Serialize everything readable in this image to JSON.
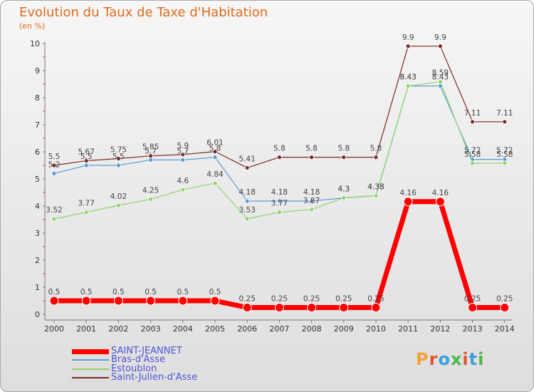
{
  "header": {
    "title": "Evolution du Taux de Taxe d'Habitation",
    "unit": "(en %)"
  },
  "logo": {
    "text": "Proxiti",
    "colors": [
      "#f2a33a",
      "#e5552d",
      "#3b9fd8",
      "#4bb648",
      "#e5552d",
      "#3b9fd8",
      "#4bb648"
    ]
  },
  "chart_data": {
    "type": "line",
    "title": "Evolution du Taux de Taxe d'Habitation",
    "ylabel": "(en %)",
    "x": [
      "2000",
      "2001",
      "2002",
      "2003",
      "2004",
      "2005",
      "2006",
      "2007",
      "2008",
      "2009",
      "2010",
      "2011",
      "2012",
      "2013",
      "2014"
    ],
    "ylim": [
      0,
      10
    ],
    "yticks": [
      "0",
      "1",
      "2",
      "3",
      "4",
      "5",
      "6",
      "7",
      "8",
      "9",
      "10"
    ],
    "grid": false,
    "legend_position": "bottom-left",
    "series": [
      {
        "name": "SAINT-JEANNET",
        "color": "#ff0000",
        "values": [
          0.5,
          0.5,
          0.5,
          0.5,
          0.5,
          0.5,
          0.25,
          0.25,
          0.25,
          0.25,
          0.25,
          4.16,
          4.16,
          0.25,
          0.25
        ],
        "labels": [
          "0.5",
          "0.5",
          "0.5",
          "0.5",
          "0.5",
          "0.5",
          "0.25",
          "0.25",
          "0.25",
          "0.25",
          "0.25",
          "4.16",
          "4.16",
          "0.25",
          "0.25"
        ]
      },
      {
        "name": "Bras-d'Asse",
        "color": "#5b9bd5",
        "values": [
          5.2,
          5.5,
          5.5,
          5.7,
          5.7,
          5.8,
          4.18,
          4.18,
          4.18,
          4.3,
          4.38,
          8.43,
          8.43,
          5.72,
          5.72
        ],
        "labels": [
          "5.2",
          "5.5",
          "5.5",
          "5.7",
          "5.7",
          "5.8",
          "4.18",
          "4.18",
          "4.18",
          "4.3",
          "4.38",
          "8.43",
          "8.43",
          "5.72",
          "5.72"
        ]
      },
      {
        "name": "Estoublon",
        "color": "#8ed36c",
        "values": [
          3.52,
          3.77,
          4.02,
          4.25,
          4.6,
          4.84,
          3.53,
          3.77,
          3.87,
          4.3,
          4.38,
          8.43,
          8.59,
          5.58,
          5.58
        ],
        "labels": [
          "3.52",
          "3.77",
          "4.02",
          "4.25",
          "4.6",
          "4.84",
          "3.53",
          "3.77",
          "3.87",
          "4.3",
          "4.38",
          "8.43",
          "8.59",
          "5.58",
          "5.58"
        ]
      },
      {
        "name": "Saint-Julien-d'Asse",
        "color": "#7a2a2a",
        "values": [
          5.5,
          5.67,
          5.75,
          5.85,
          5.9,
          6.01,
          5.41,
          5.8,
          5.8,
          5.8,
          5.8,
          9.9,
          9.9,
          7.11,
          7.11
        ],
        "labels": [
          "5.5",
          "5.67",
          "5.75",
          "5.85",
          "5.9",
          "6.01",
          "5.41",
          "5.8",
          "5.8",
          "5.8",
          "5.8",
          "9.9",
          "9.9",
          "7.11",
          "7.11"
        ]
      }
    ]
  }
}
